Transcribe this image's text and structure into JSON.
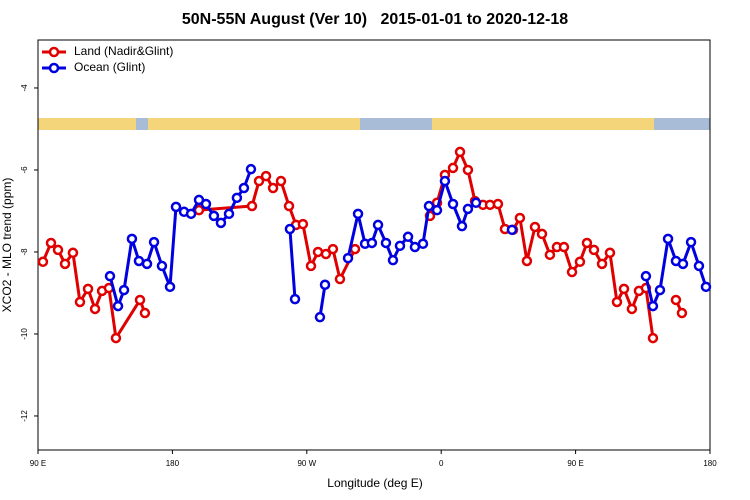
{
  "chart_data": {
    "type": "line",
    "title": "50N-55N August (Ver 10)   2015-01-01 to 2020-12-18",
    "x_label": "Longitude (deg E)",
    "y_label": "XCO2 - MLO trend (ppm)",
    "xlim": [
      90,
      540
    ],
    "ylim": [
      -12.83,
      -2.83
    ],
    "xticks": [
      {
        "value": 90,
        "label": "90 E"
      },
      {
        "value": 180,
        "label": "180"
      },
      {
        "value": 270,
        "label": "90 W"
      },
      {
        "value": 360,
        "label": "0"
      },
      {
        "value": 450,
        "label": "90 E"
      },
      {
        "value": 540,
        "label": "180"
      }
    ],
    "yticks": [
      -4,
      -6,
      -8,
      -10,
      -12
    ],
    "legend": "top-left",
    "series": [
      {
        "name": "Land (Nadir&Glint)",
        "color": "#e00000",
        "x": [
          93.3,
          98.7,
          103.4,
          108.1,
          113.4,
          118.1,
          123.5,
          128.2,
          132.9,
          137.5,
          142.2,
          158.3,
          161.6,
          null,
          197.8,
          233.3,
          238.0,
          242.7,
          247.4,
          252.7,
          258.1,
          262.8,
          267.4,
          272.8,
          277.5,
          282.8,
          287.5,
          292.2,
          302.3,
          null,
          352.5,
          357.2,
          362.5,
          367.9,
          372.6,
          377.9,
          382.6,
          388.0,
          392.7,
          398.0,
          402.7,
          408.1,
          412.7,
          417.4,
          422.8,
          427.5,
          432.8,
          437.5,
          442.2,
          447.6,
          452.9,
          457.6,
          462.3,
          467.7,
          473.0,
          477.7,
          482.4,
          487.7,
          492.4,
          497.1,
          501.8,
          null,
          517.2,
          521.2
        ],
        "values": [
          -8.24,
          -7.78,
          -7.95,
          -8.29,
          -8.02,
          -9.22,
          -8.9,
          -9.39,
          -8.95,
          -8.88,
          -10.1,
          -9.17,
          -9.49,
          null,
          -6.98,
          -6.88,
          -6.27,
          -6.15,
          -6.44,
          -6.27,
          -6.88,
          -7.34,
          -7.32,
          -8.34,
          -8.0,
          -8.05,
          -7.93,
          -8.66,
          -7.93,
          null,
          -7.12,
          -6.8,
          -6.12,
          -5.95,
          -5.56,
          -6.0,
          -6.76,
          -6.85,
          -6.85,
          -6.83,
          -7.44,
          -7.46,
          -7.17,
          -8.22,
          -7.39,
          -7.56,
          -8.07,
          -7.88,
          -7.88,
          -8.49,
          -8.24,
          -7.78,
          -7.95,
          -8.29,
          -8.02,
          -9.22,
          -8.9,
          -9.39,
          -8.95,
          -8.88,
          -10.1,
          null,
          -9.17,
          -9.49
        ]
      },
      {
        "name": "Ocean (Glint)",
        "color": "#0000e0",
        "x": [
          138.2,
          143.6,
          147.6,
          152.9,
          157.6,
          163.0,
          167.7,
          173.0,
          178.4,
          182.4,
          187.8,
          192.5,
          197.8,
          202.5,
          207.8,
          212.5,
          217.9,
          223.2,
          227.9,
          232.6,
          null,
          258.7,
          262.1,
          null,
          278.8,
          282.2,
          null,
          297.6,
          304.3,
          309.0,
          313.6,
          317.7,
          323.0,
          327.7,
          332.4,
          337.8,
          342.4,
          347.8,
          351.8,
          357.2,
          362.5,
          367.9,
          373.9,
          377.9,
          383.3,
          null,
          407.4,
          null,
          497.1,
          501.8,
          506.5,
          511.9,
          517.2,
          521.9,
          527.3,
          532.6,
          537.3
        ],
        "values": [
          -8.59,
          -9.32,
          -8.93,
          -7.68,
          -8.22,
          -8.29,
          -7.76,
          -8.34,
          -8.85,
          -6.9,
          -7.02,
          -7.07,
          -6.73,
          -6.83,
          -7.12,
          -7.29,
          -7.07,
          -6.68,
          -6.44,
          -5.98,
          null,
          -7.44,
          -9.15,
          null,
          -9.59,
          -8.8,
          null,
          -8.15,
          -7.07,
          -7.8,
          -7.78,
          -7.34,
          -7.78,
          -8.2,
          -7.85,
          -7.63,
          -7.88,
          -7.8,
          -6.88,
          -6.98,
          -6.27,
          -6.83,
          -7.37,
          -6.95,
          -6.8,
          null,
          -7.46,
          null,
          -8.59,
          -9.32,
          -8.93,
          -7.68,
          -8.22,
          -8.29,
          -7.76,
          -8.34,
          -8.85
        ]
      }
    ]
  }
}
